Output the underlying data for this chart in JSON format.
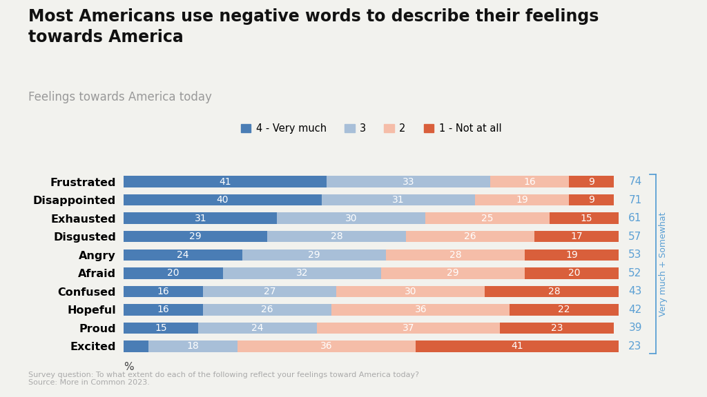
{
  "title": "Most Americans use negative words to describe their feelings\ntowards America",
  "subtitle": "Feelings towards America today",
  "footnote1": "Survey question: To what extent do each of the following reflect your feelings toward America today?",
  "footnote2": "Source: More in Common 2023.",
  "categories": [
    "Frustrated",
    "Disappointed",
    "Exhausted",
    "Disgusted",
    "Angry",
    "Afraid",
    "Confused",
    "Hopeful",
    "Proud",
    "Excited"
  ],
  "series": {
    "4 - Very much": [
      41,
      40,
      31,
      29,
      24,
      20,
      16,
      16,
      15,
      5
    ],
    "3": [
      33,
      31,
      30,
      28,
      29,
      32,
      27,
      26,
      24,
      18
    ],
    "2": [
      16,
      19,
      25,
      26,
      28,
      29,
      30,
      36,
      37,
      36
    ],
    "1 - Not at all": [
      9,
      9,
      15,
      17,
      19,
      20,
      28,
      22,
      23,
      41
    ]
  },
  "totals": [
    74,
    71,
    61,
    57,
    53,
    52,
    43,
    42,
    39,
    23
  ],
  "colors": {
    "4 - Very much": "#4a7db5",
    "3": "#a8bfd8",
    "2": "#f5bda8",
    "1 - Not at all": "#d95f3b"
  },
  "legend_order": [
    "4 - Very much",
    "3",
    "2",
    "1 - Not at all"
  ],
  "xlabel": "%",
  "right_label": "Very much + Somewhat",
  "background_color": "#f2f2ee",
  "bar_height": 0.62,
  "title_fontsize": 17,
  "subtitle_fontsize": 12,
  "label_fontsize": 10,
  "legend_fontsize": 10.5,
  "total_fontsize": 11,
  "annotation_color": "#5a9fd4"
}
